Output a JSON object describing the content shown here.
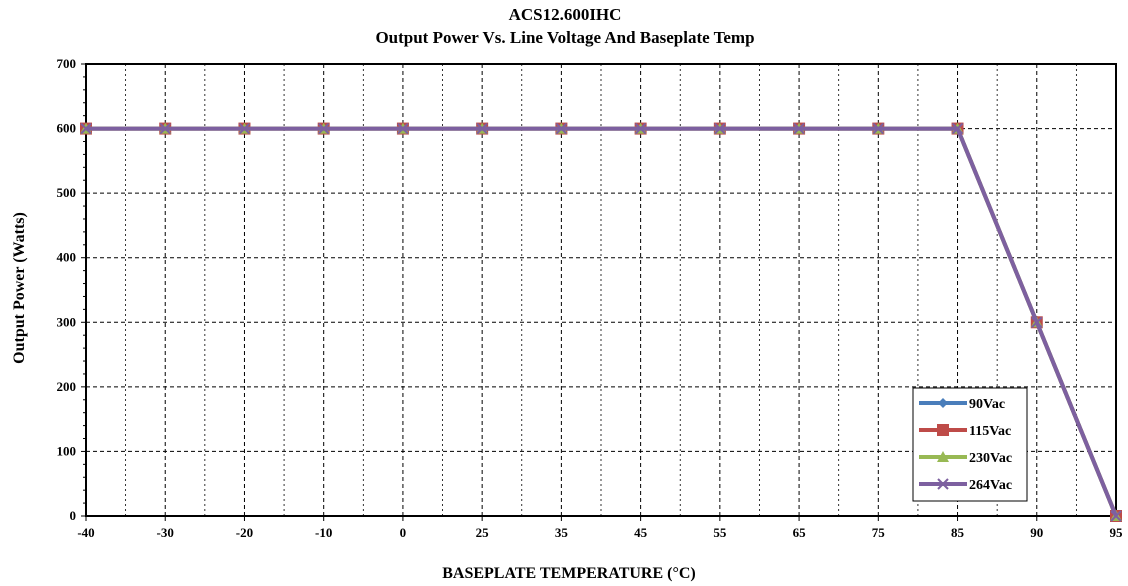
{
  "chart_data": {
    "type": "line",
    "title": "ACS12.600IHC",
    "subtitle": "Output Power Vs.  Line Voltage And Baseplate Temp",
    "xlabel": "BASEPLATE TEMPERATURE  (°C)",
    "ylabel": "Output Power (Watts)",
    "categories": [
      "-40",
      "-30",
      "-20",
      "-10",
      "0",
      "25",
      "35",
      "45",
      "55",
      "65",
      "75",
      "85",
      "90",
      "95"
    ],
    "ylim": [
      0,
      700
    ],
    "yticks": [
      "0",
      "100",
      "200",
      "300",
      "400",
      "500",
      "600",
      "700"
    ],
    "grid": true,
    "legend_position": "bottom-right",
    "series": [
      {
        "name": "90Vac",
        "color": "#4a7ebb",
        "marker": "diamond",
        "values": [
          600,
          600,
          600,
          600,
          600,
          600,
          600,
          600,
          600,
          600,
          600,
          600,
          300,
          0
        ]
      },
      {
        "name": "115Vac",
        "color": "#be4b48",
        "marker": "square",
        "values": [
          600,
          600,
          600,
          600,
          600,
          600,
          600,
          600,
          600,
          600,
          600,
          600,
          300,
          0
        ]
      },
      {
        "name": "230Vac",
        "color": "#98b954",
        "marker": "triangle",
        "values": [
          600,
          600,
          600,
          600,
          600,
          600,
          600,
          600,
          600,
          600,
          600,
          600,
          300,
          0
        ]
      },
      {
        "name": "264Vac",
        "color": "#7d60a0",
        "marker": "x",
        "values": [
          600,
          600,
          600,
          600,
          600,
          600,
          600,
          600,
          600,
          600,
          600,
          600,
          300,
          0
        ]
      }
    ]
  }
}
